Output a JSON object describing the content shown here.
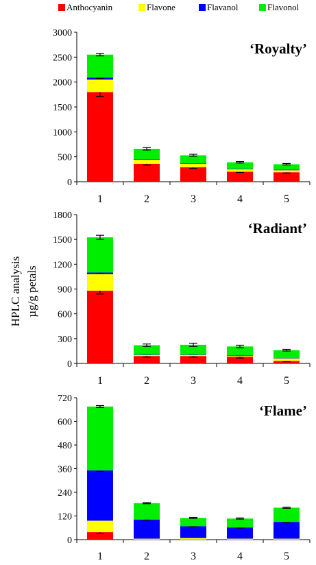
{
  "legend": [
    {
      "name": "Anthocyanin",
      "color": "#ff0000"
    },
    {
      "name": "Flavone",
      "color": "#ffff00"
    },
    {
      "name": "Flavanol",
      "color": "#0000ff"
    },
    {
      "name": "Flavonol",
      "color": "#00ee00"
    }
  ],
  "ylabel_line1": "HPLC analysis",
  "ylabel_line2": "µg/g petals",
  "chart_data": [
    {
      "type": "bar",
      "stacked": true,
      "title": "‘Royalty’",
      "categories": [
        "1",
        "2",
        "3",
        "4",
        "5"
      ],
      "yticks": [
        "0",
        "500",
        "1000",
        "1500",
        "2000",
        "2500",
        "3000"
      ],
      "ylim": [
        0,
        3000
      ],
      "series": [
        {
          "name": "Anthocyanin",
          "color": "#ff0000",
          "values": [
            1800,
            360,
            290,
            200,
            190
          ],
          "errors": [
            90,
            25,
            25,
            15,
            15
          ]
        },
        {
          "name": "Flavone",
          "color": "#ffff00",
          "values": [
            250,
            80,
            70,
            50,
            40
          ],
          "errors": [
            0,
            0,
            0,
            0,
            0
          ]
        },
        {
          "name": "Flavanol",
          "color": "#0000ff",
          "values": [
            40,
            10,
            10,
            10,
            10
          ],
          "errors": [
            15,
            0,
            0,
            0,
            0
          ]
        },
        {
          "name": "Flavonol",
          "color": "#00ee00",
          "values": [
            460,
            210,
            160,
            130,
            110
          ],
          "errors": [
            25,
            25,
            20,
            15,
            15
          ]
        }
      ]
    },
    {
      "type": "bar",
      "stacked": true,
      "title": "‘Radiant’",
      "categories": [
        "1",
        "2",
        "3",
        "4",
        "5"
      ],
      "yticks": [
        "0",
        "300",
        "600",
        "900",
        "1200",
        "1500",
        "1800"
      ],
      "ylim": [
        0,
        1800
      ],
      "series": [
        {
          "name": "Anthocyanin",
          "color": "#ff0000",
          "values": [
            880,
            90,
            90,
            80,
            30
          ],
          "errors": [
            40,
            15,
            15,
            15,
            10
          ]
        },
        {
          "name": "Flavone",
          "color": "#ffff00",
          "values": [
            200,
            10,
            10,
            10,
            30
          ],
          "errors": [
            0,
            0,
            0,
            0,
            0
          ]
        },
        {
          "name": "Flavanol",
          "color": "#0000ff",
          "values": [
            20,
            5,
            5,
            5,
            5
          ],
          "errors": [
            10,
            0,
            0,
            0,
            0
          ]
        },
        {
          "name": "Flavonol",
          "color": "#00ee00",
          "values": [
            425,
            115,
            120,
            110,
            95
          ],
          "errors": [
            25,
            15,
            20,
            15,
            10
          ]
        }
      ]
    },
    {
      "type": "bar",
      "stacked": true,
      "title": "‘Flame’",
      "categories": [
        "1",
        "2",
        "3",
        "4",
        "5"
      ],
      "yticks": [
        "0",
        "120",
        "240",
        "360",
        "480",
        "600",
        "720"
      ],
      "ylim": [
        0,
        720
      ],
      "series": [
        {
          "name": "Anthocyanin",
          "color": "#ff0000",
          "values": [
            38,
            0,
            0,
            0,
            0
          ],
          "errors": [
            8,
            0,
            0,
            0,
            0
          ]
        },
        {
          "name": "Flavone",
          "color": "#ffff00",
          "values": [
            58,
            5,
            8,
            5,
            5
          ],
          "errors": [
            0,
            0,
            0,
            0,
            0
          ]
        },
        {
          "name": "Flavanol",
          "color": "#0000ff",
          "values": [
            255,
            97,
            60,
            57,
            85
          ],
          "errors": [
            5,
            3,
            3,
            3,
            3
          ]
        },
        {
          "name": "Flavonol",
          "color": "#00ee00",
          "values": [
            324,
            83,
            42,
            45,
            72
          ],
          "errors": [
            5,
            3,
            3,
            3,
            3
          ]
        }
      ]
    }
  ]
}
